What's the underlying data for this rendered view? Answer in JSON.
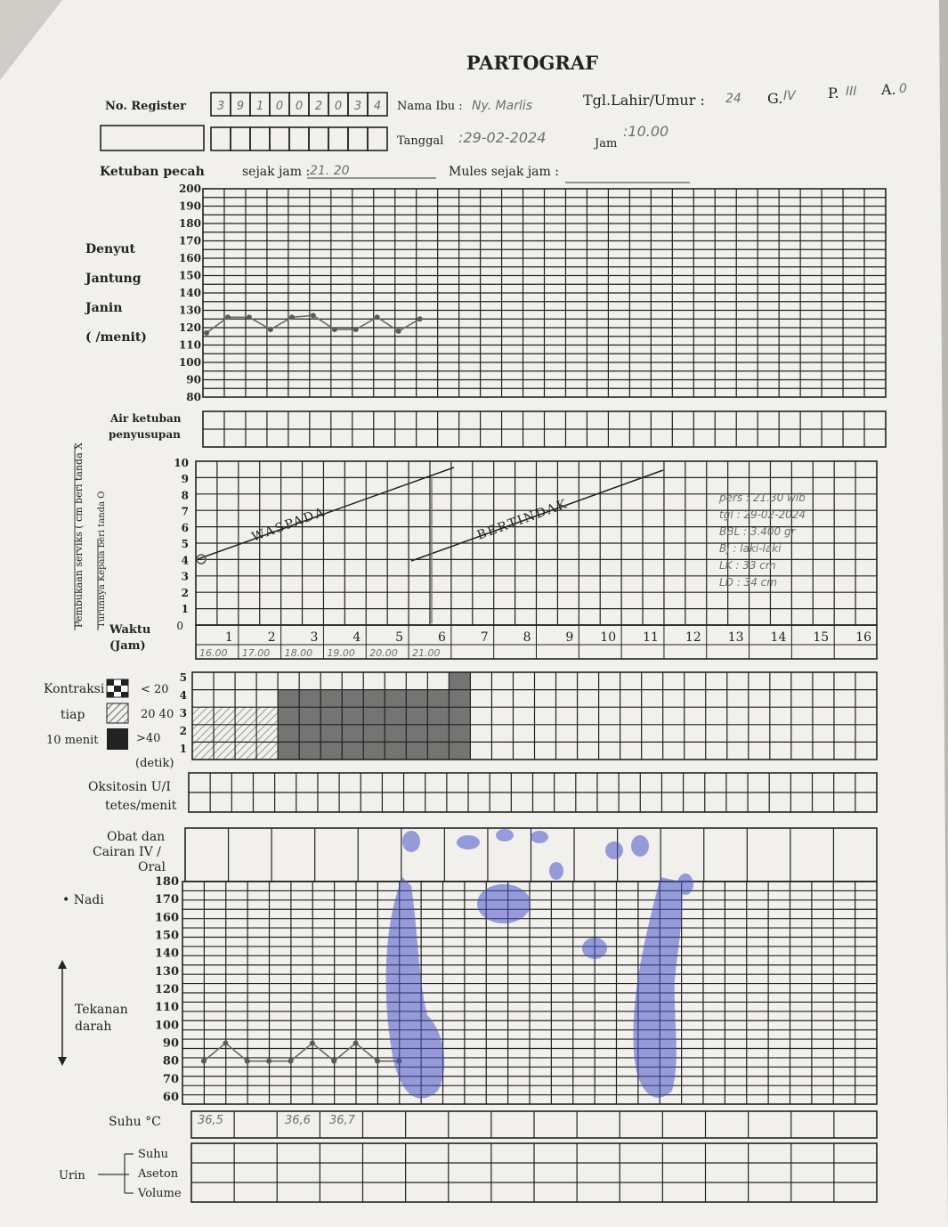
{
  "form": {
    "title": "PARTOGRAF",
    "no_register_label": "No. Register",
    "no_register_digits": [
      "3",
      "9",
      "1",
      "0",
      "0",
      "2",
      "0",
      "3",
      "4"
    ],
    "nama_ibu_label": "Nama Ibu :",
    "nama_ibu_value": "Ny. Marlis",
    "tgl_lahir_label": "Tgl.Lahir/Umur :",
    "umur_value": "24",
    "g_label": "G.",
    "g_value": "IV",
    "p_label": "P.",
    "p_value": "III",
    "a_label": "A.",
    "a_value": "0",
    "tanggal_label": "Tanggal",
    "tanggal_value": ":29-02-2024",
    "jam_label": "Jam",
    "jam_value": ":10.00",
    "ketuban_label": "Ketuban pecah",
    "sejak_jam_label": "sejak jam :",
    "sejak_jam_value": "21. 20",
    "mules_label": "Mules sejak jam :"
  },
  "djj": {
    "label_lines": [
      "Denyut",
      "Jantung",
      "Janin",
      "(   /menit)"
    ],
    "scale": [
      "200",
      "190",
      "180",
      "170",
      "160",
      "150",
      "140",
      "130",
      "120",
      "110",
      "100",
      "90",
      "80"
    ],
    "values": [
      117,
      126,
      126,
      119,
      126,
      127,
      119,
      119,
      126,
      118,
      125
    ]
  },
  "air_ketuban": {
    "label_lines": [
      "Air ketuban",
      "penyusupan"
    ]
  },
  "serviks": {
    "side_label": "Pembukaan serviks ( cm beri tanda X",
    "side_label2": "Turunnya Kepala beri tanda O",
    "scale": [
      "10",
      "9",
      "8",
      "7",
      "6",
      "5",
      "4",
      "3",
      "2",
      "1",
      "0"
    ],
    "waspada": "WASPADA",
    "bertindak": "BERTINDAK",
    "waktu_label": "Waktu",
    "jam_label": "(Jam)",
    "hours": [
      "1",
      "2",
      "3",
      "4",
      "5",
      "6",
      "7",
      "8",
      "9",
      "10",
      "11",
      "12",
      "13",
      "14",
      "15",
      "16"
    ],
    "times": [
      "16.00",
      "17.00",
      "18.00",
      "19.00",
      "20.00",
      "21.00"
    ],
    "birth_notes": [
      "pers : 21.30 wib",
      "tgl : 29-02-2024",
      "BBL : 3.400 gr",
      "Bj : laki-laki",
      "LK : 33 cm",
      "LD : 34 cm"
    ]
  },
  "kontraksi": {
    "label_lines": [
      "Kontraksi",
      "tiap",
      "10 menit"
    ],
    "legend": [
      "< 20",
      "20 40",
      ">40"
    ],
    "detik_label": "(detik)",
    "scale": [
      "5",
      "4",
      "3",
      "2",
      "1"
    ],
    "bars": [
      3,
      3,
      3,
      3,
      4,
      4,
      4,
      4,
      4,
      4,
      4,
      4,
      5
    ]
  },
  "oksitosin": {
    "label_lines": [
      "Oksitosin U/I",
      "tetes/menit"
    ]
  },
  "obat": {
    "label_lines": [
      "Obat dan",
      "Cairan IV /",
      "Oral"
    ]
  },
  "nadi": {
    "label": "• Nadi",
    "td_label_lines": [
      "Tekanan",
      "darah"
    ],
    "scale": [
      "180",
      "170",
      "160",
      "150",
      "140",
      "130",
      "120",
      "110",
      "100",
      "90",
      "80",
      "70",
      "60"
    ],
    "values": [
      80,
      90,
      80,
      80,
      80,
      90,
      80,
      90,
      80,
      80
    ]
  },
  "suhu": {
    "label": "Suhu   °C",
    "values": [
      "36,5",
      "36,6",
      "36,7"
    ]
  },
  "urin": {
    "label": "Urin",
    "rows": [
      "Suhu",
      "Aseton",
      "Volume"
    ]
  }
}
